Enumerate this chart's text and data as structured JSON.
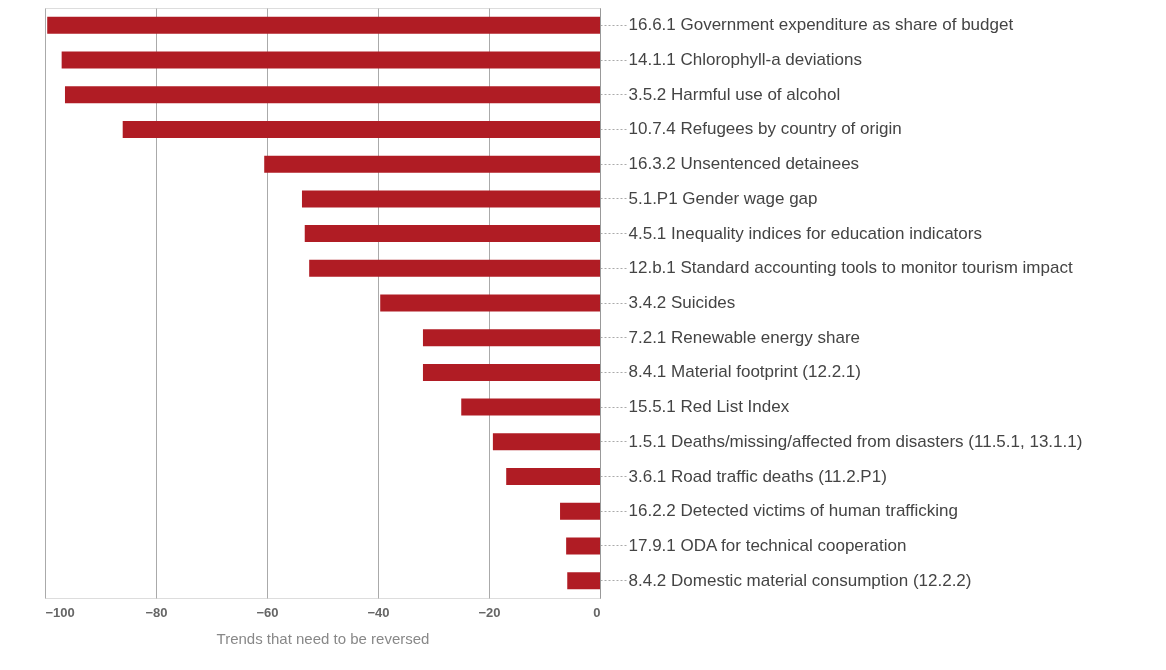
{
  "chart_data": {
    "type": "bar",
    "orientation": "horizontal",
    "xlabel": "Trends that need to be reversed",
    "categories": [
      "16.6.1 Government expenditure as share of budget",
      "14.1.1 Chlorophyll-a deviations",
      "3.5.2 Harmful use of alcohol",
      "10.7.4 Refugees by country of origin",
      "16.3.2 Unsentenced detainees",
      "5.1.P1 Gender wage gap",
      "4.5.1 Inequality indices for education indicators",
      "12.b.1 Standard accounting tools to monitor tourism impact",
      "3.4.2 Suicides",
      "7.2.1 Renewable energy share",
      "8.4.1 Material footprint (12.2.1)",
      "15.5.1 Red List Index",
      "1.5.1 Deaths/missing/affected from disasters (11.5.1, 13.1.1)",
      "3.6.1 Road traffic deaths (11.2.P1)",
      "16.2.2 Detected victims of human trafficking",
      "17.9.1 ODA for technical cooperation",
      "8.4.2 Domestic material consumption (12.2.2)"
    ],
    "values": [
      -99.6,
      -97,
      -96.4,
      -86,
      -60.5,
      -53.7,
      -53.2,
      -52.4,
      -39.6,
      -31.9,
      -31.9,
      -25,
      -19.3,
      -16.9,
      -7.2,
      -6.1,
      -5.9
    ],
    "color": "#b01c24",
    "xlim": [
      -100,
      0
    ],
    "xticks": [
      -100,
      -80,
      -60,
      -40,
      -20,
      0
    ],
    "grid": "x"
  }
}
